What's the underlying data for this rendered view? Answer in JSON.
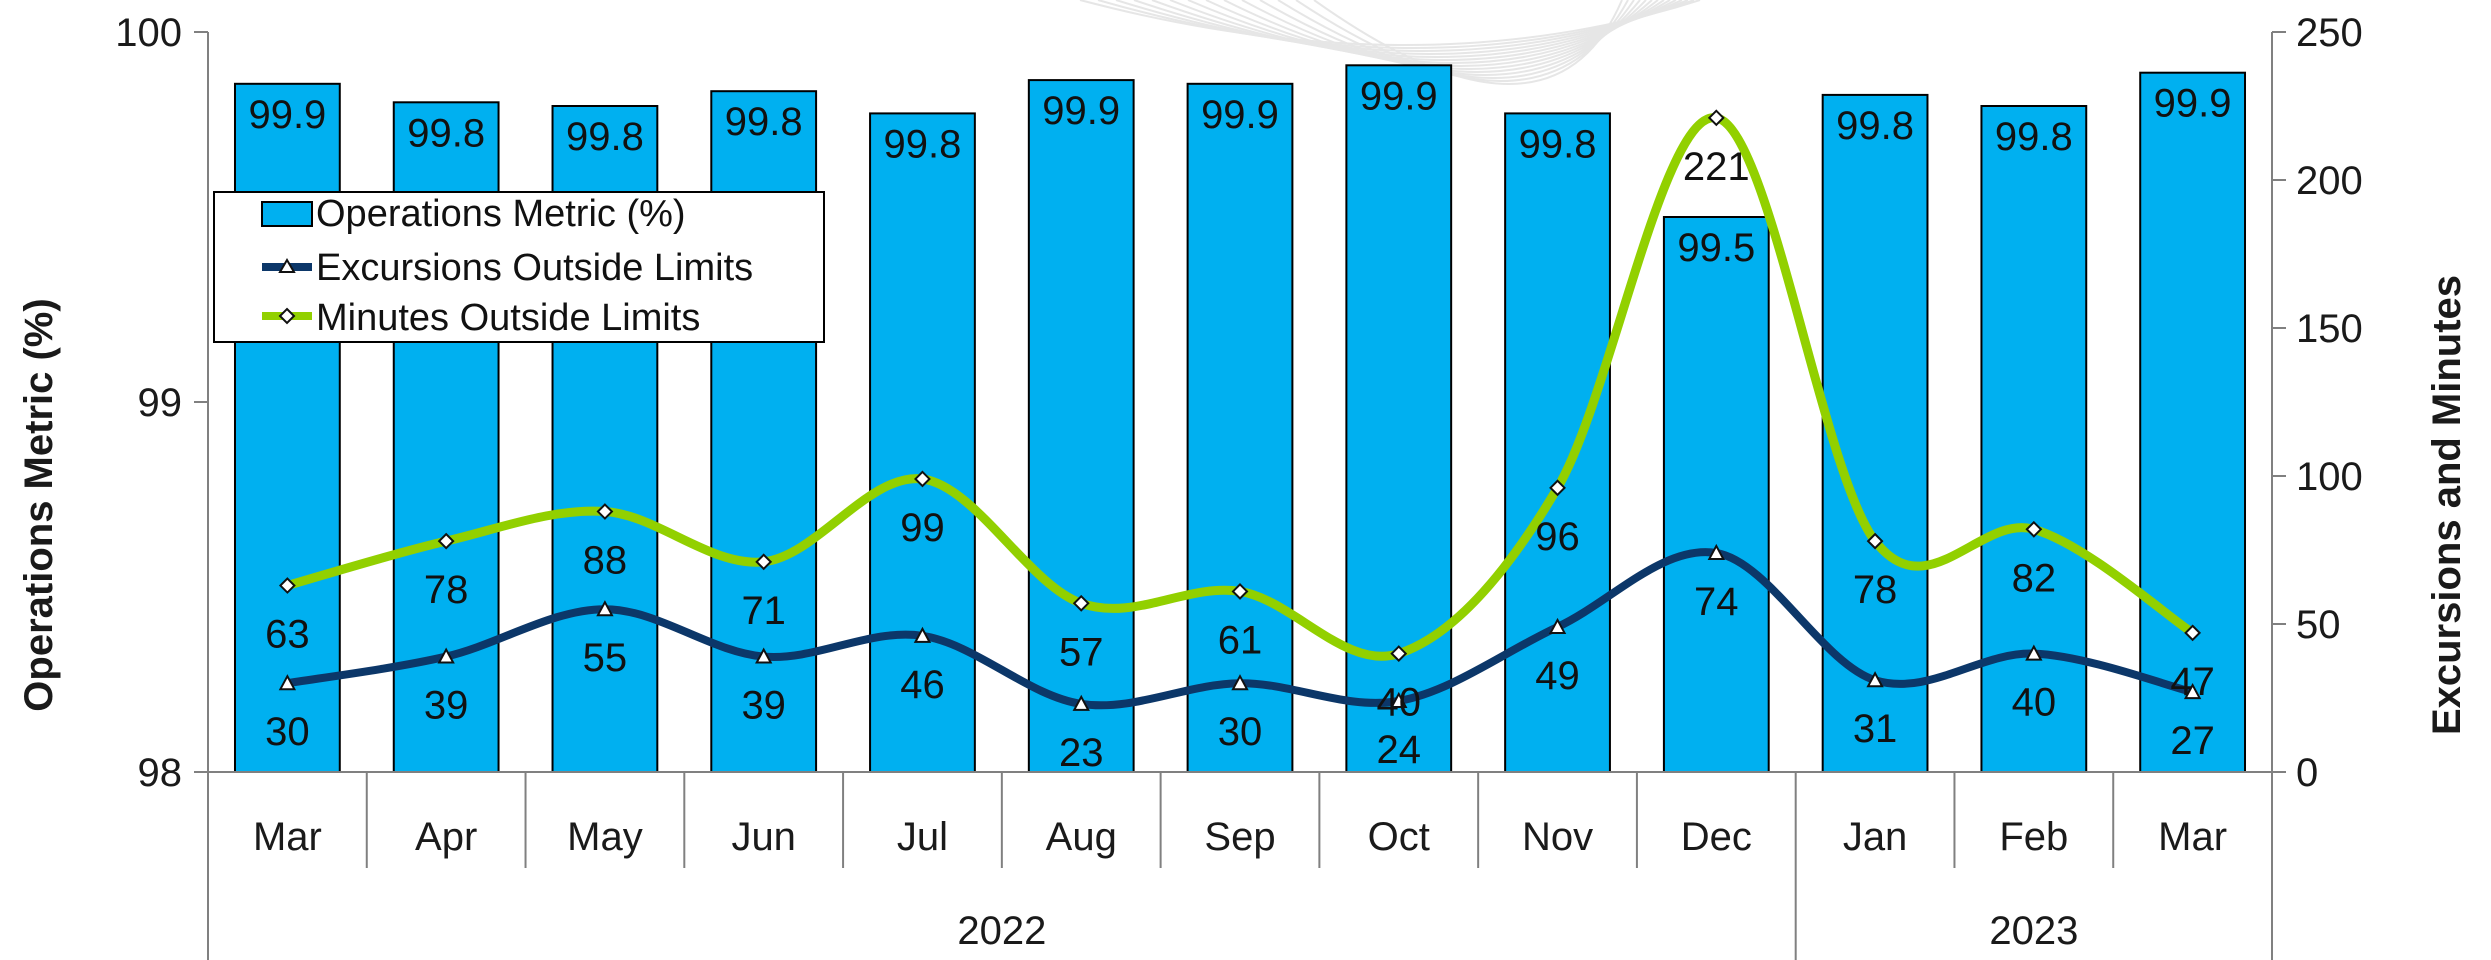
{
  "chart_data": {
    "type": "bar",
    "categories": [
      "Mar",
      "Apr",
      "May",
      "Jun",
      "Jul",
      "Aug",
      "Sep",
      "Oct",
      "Nov",
      "Dec",
      "Jan",
      "Feb",
      "Mar"
    ],
    "year_groups": [
      {
        "label": "2022",
        "start": 0,
        "end": 9
      },
      {
        "label": "2023",
        "start": 10,
        "end": 12
      }
    ],
    "series": [
      {
        "name": "Operations Metric (%)",
        "kind": "bar",
        "axis": "left",
        "color": "#00b0f0",
        "values": [
          99.86,
          99.81,
          99.8,
          99.84,
          99.78,
          99.87,
          99.86,
          99.91,
          99.78,
          99.5,
          99.83,
          99.8,
          99.89
        ],
        "labels": [
          "99.9",
          "99.8",
          "99.8",
          "99.8",
          "99.8",
          "99.9",
          "99.9",
          "99.9",
          "99.8",
          "99.5",
          "99.8",
          "99.8",
          "99.9"
        ]
      },
      {
        "name": "Excursions Outside Limits",
        "kind": "line",
        "axis": "right",
        "color": "#0c3769",
        "values": [
          30,
          39,
          55,
          39,
          46,
          23,
          30,
          24,
          49,
          74,
          31,
          40,
          27
        ],
        "labels": [
          "30",
          "39",
          "55",
          "39",
          "46",
          "23",
          "30",
          "24",
          "49",
          "74",
          "31",
          "40",
          "27"
        ]
      },
      {
        "name": "Minutes Outside Limits",
        "kind": "line",
        "axis": "right",
        "color": "#92d000",
        "values": [
          63,
          78,
          88,
          71,
          99,
          57,
          61,
          40,
          96,
          221,
          78,
          82,
          47
        ],
        "labels": [
          "63",
          "78",
          "88",
          "71",
          "99",
          "57",
          "61",
          "40",
          "96",
          "221",
          "78",
          "82",
          "47"
        ]
      }
    ],
    "yleft": {
      "label": "Operations Metric (%)",
      "range": [
        98,
        100
      ],
      "ticks": [
        "98",
        "99",
        "100"
      ]
    },
    "yright": {
      "label": "Excursions and Minutes",
      "range": [
        0,
        250
      ],
      "ticks": [
        "0",
        "50",
        "100",
        "150",
        "200",
        "250"
      ]
    },
    "legend_position": "top-left",
    "grid": false
  }
}
